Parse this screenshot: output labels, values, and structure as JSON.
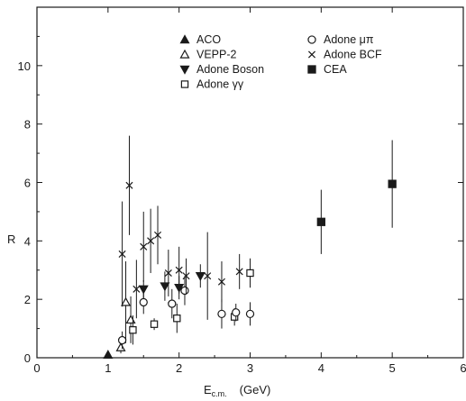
{
  "chart_data": {
    "type": "scatter",
    "xlabel": "E",
    "xlabel_sub": "c.m.",
    "xlabel_unit": "(GeV)",
    "ylabel": "R",
    "xlim": [
      0,
      6
    ],
    "ylim": [
      0,
      12
    ],
    "xticks": [
      0,
      1,
      2,
      3,
      4,
      5,
      6
    ],
    "yticks": [
      0,
      2,
      4,
      6,
      8,
      10
    ],
    "grid": false,
    "legend_position": "top-center",
    "series": [
      {
        "name": "ACO",
        "marker": "triangle-up-filled",
        "points": [
          {
            "x": 1.0,
            "y": 0.1,
            "err": 0
          }
        ]
      },
      {
        "name": "VEPP-2",
        "marker": "triangle-up-open",
        "points": [
          {
            "x": 1.18,
            "y": 0.35,
            "err": 0.2
          },
          {
            "x": 1.25,
            "y": 1.9,
            "err": 1.4
          },
          {
            "x": 1.32,
            "y": 1.3,
            "err": 0.8
          }
        ]
      },
      {
        "name": "Adone Boson",
        "marker": "triangle-down-filled",
        "points": [
          {
            "x": 1.5,
            "y": 2.35,
            "err": 0.3
          },
          {
            "x": 1.8,
            "y": 2.45,
            "err": 0.5
          },
          {
            "x": 2.0,
            "y": 2.4,
            "err": 0.4
          },
          {
            "x": 2.3,
            "y": 2.8,
            "err": 0.4
          }
        ]
      },
      {
        "name": "Adone γγ",
        "marker": "square-open",
        "points": [
          {
            "x": 1.35,
            "y": 0.95,
            "err": 0.5
          },
          {
            "x": 1.65,
            "y": 1.15,
            "err": 0.2
          },
          {
            "x": 1.97,
            "y": 1.35,
            "err": 0.5
          },
          {
            "x": 2.78,
            "y": 1.4,
            "err": 0.3
          },
          {
            "x": 3.0,
            "y": 2.9,
            "err": 0.5
          }
        ]
      },
      {
        "name": "Adone μπ",
        "marker": "circle-open",
        "points": [
          {
            "x": 1.2,
            "y": 0.6,
            "err": 0.3
          },
          {
            "x": 1.5,
            "y": 1.9,
            "err": 0.4
          },
          {
            "x": 1.9,
            "y": 1.85,
            "err": 0.5
          },
          {
            "x": 2.08,
            "y": 2.3,
            "err": 0.5
          },
          {
            "x": 2.6,
            "y": 1.5,
            "err": 0.5
          },
          {
            "x": 2.8,
            "y": 1.55,
            "err": 0.3
          },
          {
            "x": 3.0,
            "y": 1.5,
            "err": 0.4
          }
        ]
      },
      {
        "name": "Adone BCF",
        "marker": "x",
        "points": [
          {
            "x": 1.2,
            "y": 3.55,
            "err": 1.8
          },
          {
            "x": 1.3,
            "y": 5.9,
            "err": 1.7
          },
          {
            "x": 1.4,
            "y": 2.35,
            "err": 1.0
          },
          {
            "x": 1.5,
            "y": 3.8,
            "err": 1.2
          },
          {
            "x": 1.6,
            "y": 4.0,
            "err": 1.1
          },
          {
            "x": 1.7,
            "y": 4.2,
            "err": 1.0
          },
          {
            "x": 1.85,
            "y": 2.9,
            "err": 0.8
          },
          {
            "x": 2.0,
            "y": 3.0,
            "err": 0.8
          },
          {
            "x": 2.1,
            "y": 2.8,
            "err": 0.6
          },
          {
            "x": 2.4,
            "y": 2.8,
            "err": 1.5
          },
          {
            "x": 2.6,
            "y": 2.6,
            "err": 0.7
          },
          {
            "x": 2.85,
            "y": 2.95,
            "err": 0.6
          }
        ]
      },
      {
        "name": "CEA",
        "marker": "square-filled",
        "points": [
          {
            "x": 4.0,
            "y": 4.65,
            "err": 1.1
          },
          {
            "x": 5.0,
            "y": 5.95,
            "err": 1.5
          }
        ]
      }
    ]
  },
  "legend": {
    "col1": [
      "ACO",
      "VEPP-2",
      "Adone Boson",
      "Adone γγ"
    ],
    "col2": [
      "Adone μπ",
      "Adone BCF",
      "CEA"
    ]
  }
}
